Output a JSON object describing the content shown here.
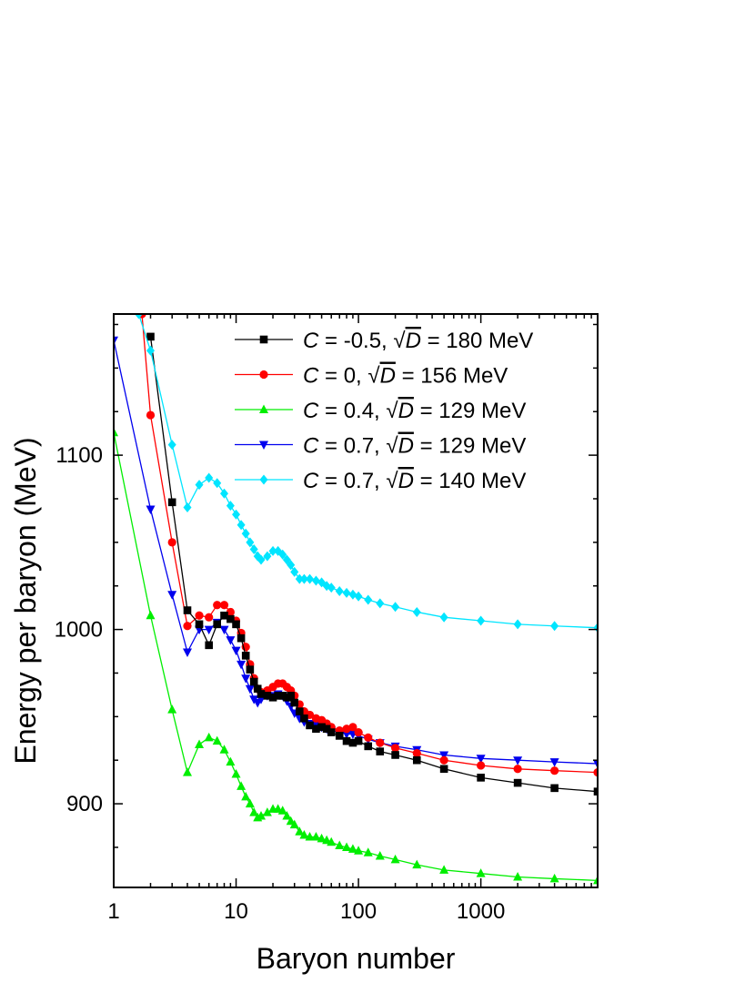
{
  "chart_data": {
    "type": "line",
    "title": "",
    "xlabel": "Baryon number",
    "ylabel": "Energy per baryon (MeV)",
    "xscale": "log",
    "xlim": [
      1,
      9000
    ],
    "ylim": [
      852,
      1181
    ],
    "x_ticks": [
      {
        "value": 1,
        "label": "1"
      },
      {
        "value": 10,
        "label": "10"
      },
      {
        "value": 100,
        "label": "100"
      },
      {
        "value": 1000,
        "label": "1000"
      }
    ],
    "y_ticks": [
      {
        "value": 900,
        "label": "900"
      },
      {
        "value": 1000,
        "label": "1000"
      },
      {
        "value": 1100,
        "label": "1100"
      }
    ],
    "legend_position": "top-right",
    "series": [
      {
        "legend": {
          "symbol": "C",
          "value": " = -0.5, ",
          "root": "√",
          "param": "D",
          "suffix": " = 180 MeV"
        },
        "color": "#000000",
        "marker": "square",
        "x": [
          2,
          3,
          4,
          5,
          6,
          7,
          8,
          9,
          10,
          11,
          12,
          13,
          14,
          15,
          16,
          18,
          20,
          22,
          24,
          26,
          28,
          30,
          33,
          36,
          40,
          45,
          50,
          55,
          60,
          70,
          80,
          90,
          100,
          120,
          150,
          200,
          300,
          500,
          1000,
          2000,
          4000,
          9000
        ],
        "y": [
          1168,
          1073,
          1011,
          1003,
          991,
          1003,
          1008,
          1006,
          1003,
          995,
          985,
          977,
          970,
          966,
          963,
          962,
          961,
          962,
          962,
          961,
          962,
          958,
          953,
          949,
          945,
          943,
          944,
          943,
          941,
          939,
          936,
          935,
          936,
          933,
          930,
          928,
          925,
          920,
          915,
          912,
          909,
          907
        ]
      },
      {
        "legend": {
          "symbol": "C",
          "value": " = 0, ",
          "root": "√",
          "param": "D",
          "suffix": " = 156 MeV"
        },
        "color": "#ff0000",
        "marker": "circle",
        "x": [
          1.7,
          2,
          3,
          4,
          5,
          6,
          7,
          8,
          9,
          10,
          11,
          12,
          13,
          14,
          15,
          16,
          18,
          20,
          22,
          24,
          26,
          28,
          30,
          33,
          36,
          40,
          45,
          50,
          55,
          60,
          70,
          80,
          90,
          100,
          120,
          150,
          200,
          300,
          500,
          1000,
          2000,
          4000,
          9000
        ],
        "y": [
          1181,
          1123,
          1050,
          1002,
          1008,
          1007,
          1014,
          1014,
          1010,
          1005,
          998,
          990,
          980,
          972,
          966,
          964,
          965,
          967,
          969,
          969,
          967,
          965,
          962,
          957,
          953,
          951,
          949,
          948,
          946,
          944,
          942,
          943,
          944,
          941,
          938,
          935,
          932,
          929,
          925,
          922,
          920,
          919,
          918
        ]
      },
      {
        "legend": {
          "symbol": "C",
          "value": " = 0.4, ",
          "root": "√",
          "param": "D",
          "suffix": " = 129 MeV"
        },
        "color": "#00ee00",
        "marker": "triangle-up",
        "x": [
          1,
          2,
          3,
          4,
          5,
          6,
          7,
          8,
          9,
          10,
          11,
          12,
          13,
          14,
          15,
          16,
          18,
          20,
          22,
          24,
          26,
          28,
          30,
          33,
          36,
          40,
          45,
          50,
          55,
          60,
          70,
          80,
          90,
          100,
          120,
          150,
          200,
          300,
          500,
          1000,
          2000,
          4000,
          9000
        ],
        "y": [
          1113,
          1008,
          954,
          918,
          934,
          938,
          936,
          931,
          924,
          917,
          910,
          904,
          900,
          895,
          892,
          893,
          895,
          897,
          897,
          896,
          893,
          890,
          888,
          884,
          882,
          881,
          881,
          880,
          879,
          878,
          876,
          875,
          874,
          873,
          872,
          870,
          868,
          865,
          862,
          860,
          858,
          857,
          856
        ]
      },
      {
        "legend": {
          "symbol": "C",
          "value": " = 0.7, ",
          "root": "√",
          "param": "D",
          "suffix": " = 129 MeV"
        },
        "color": "#0000ee",
        "marker": "triangle-down",
        "x": [
          1,
          2,
          3,
          4,
          5,
          6,
          7,
          8,
          9,
          10,
          11,
          12,
          13,
          14,
          15,
          16,
          18,
          20,
          22,
          24,
          26,
          28,
          30,
          33,
          36,
          40,
          45,
          50,
          55,
          60,
          70,
          80,
          90,
          100,
          120,
          150,
          200,
          300,
          500,
          1000,
          2000,
          4000,
          9000
        ],
        "y": [
          1166,
          1069,
          1020,
          987,
          1000,
          1000,
          1004,
          1000,
          994,
          988,
          980,
          972,
          966,
          960,
          958,
          960,
          962,
          962,
          963,
          962,
          959,
          956,
          952,
          949,
          947,
          946,
          945,
          944,
          943,
          942,
          941,
          940,
          940,
          939,
          937,
          935,
          933,
          931,
          928,
          926,
          925,
          924,
          923
        ]
      },
      {
        "legend": {
          "symbol": "C",
          "value": " = 0.7, ",
          "root": "√",
          "param": "D",
          "suffix": " = 140 MeV"
        },
        "color": "#00e5ff",
        "marker": "diamond",
        "x": [
          1.6,
          2,
          3,
          4,
          5,
          6,
          7,
          8,
          9,
          10,
          11,
          12,
          13,
          14,
          15,
          16,
          18,
          20,
          22,
          24,
          26,
          28,
          30,
          33,
          36,
          40,
          45,
          50,
          55,
          60,
          70,
          80,
          90,
          100,
          120,
          150,
          200,
          300,
          500,
          1000,
          2000,
          4000,
          9000
        ],
        "y": [
          1181,
          1160,
          1106,
          1070,
          1083,
          1087,
          1084,
          1078,
          1071,
          1066,
          1060,
          1055,
          1050,
          1046,
          1042,
          1040,
          1042,
          1045,
          1045,
          1043,
          1040,
          1037,
          1033,
          1029,
          1029,
          1029,
          1028,
          1027,
          1025,
          1024,
          1022,
          1021,
          1020,
          1019,
          1017,
          1015,
          1013,
          1010,
          1007,
          1005,
          1003,
          1002,
          1001
        ]
      }
    ]
  }
}
